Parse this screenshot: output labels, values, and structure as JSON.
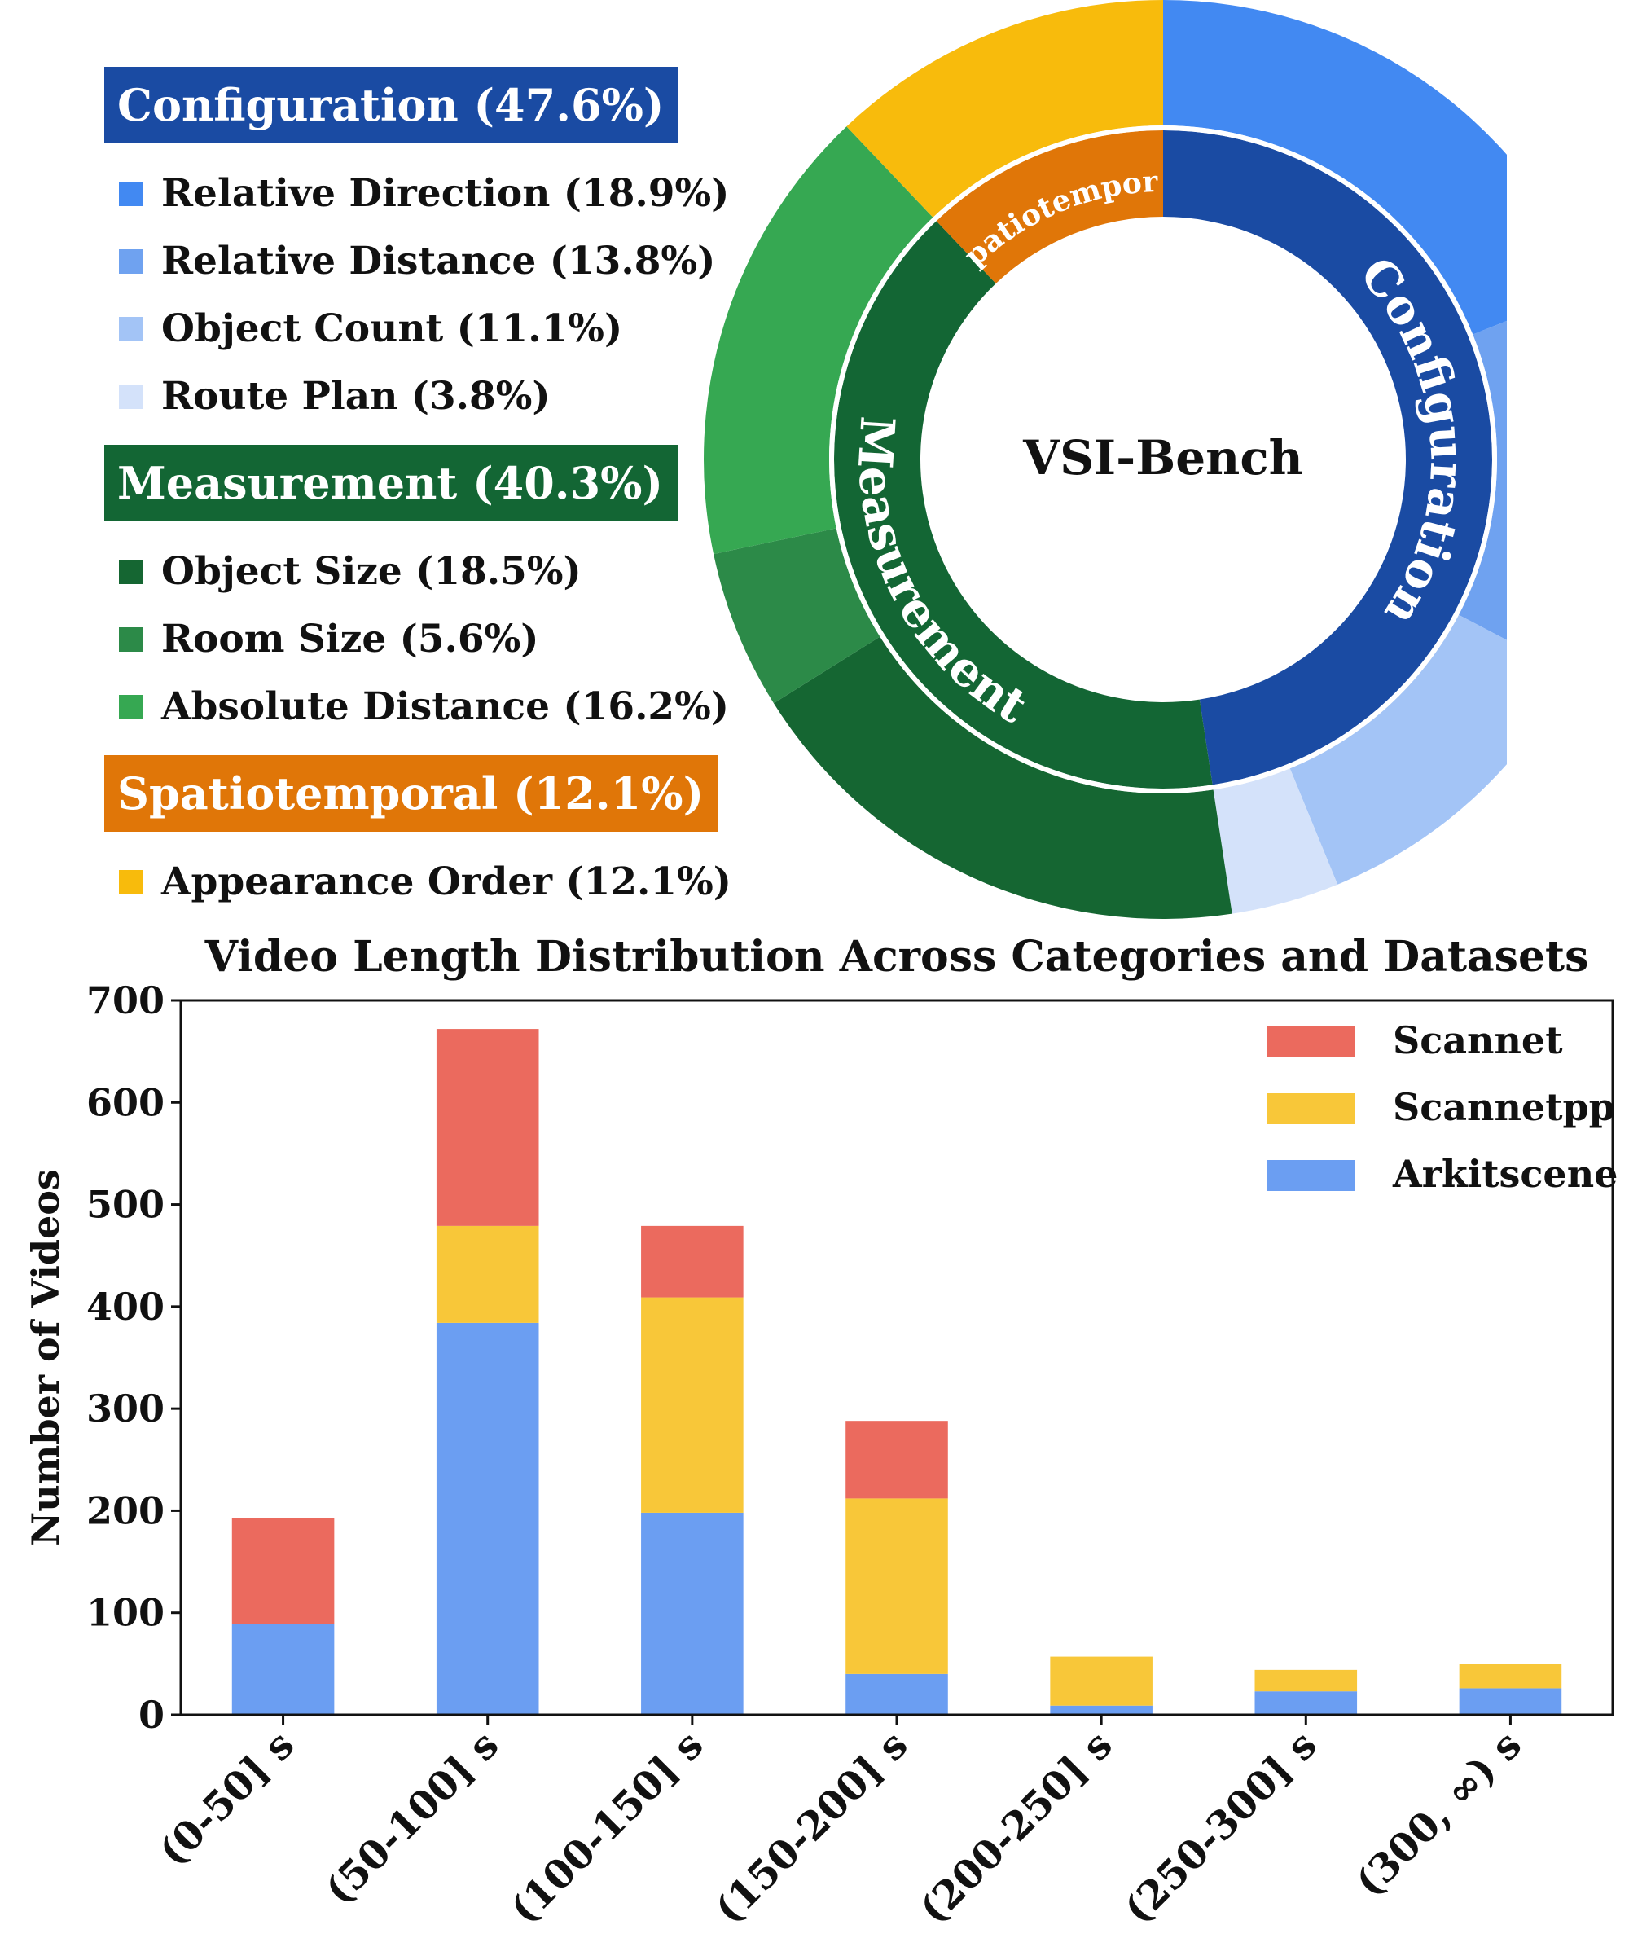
{
  "legend_panel": {
    "groups": [
      {
        "label": "Configuration (47.6%)",
        "color": "#1a4ba3",
        "items": [
          {
            "label": "Relative Direction (18.9%)",
            "color": "#4289f2"
          },
          {
            "label": "Relative Distance (13.8%)",
            "color": "#6fa2f0"
          },
          {
            "label": "Object Count (11.1%)",
            "color": "#a3c4f6"
          },
          {
            "label": "Route Plan (3.8%)",
            "color": "#d4e2fa"
          }
        ]
      },
      {
        "label": "Measurement (40.3%)",
        "color": "#136634",
        "items": [
          {
            "label": "Object Size (18.5%)",
            "color": "#156632"
          },
          {
            "label": "Room Size (5.6%)",
            "color": "#2c8a48"
          },
          {
            "label": "Absolute Distance (16.2%)",
            "color": "#36a852"
          }
        ]
      },
      {
        "label": "Spatiotemporal (12.1%)",
        "color": "#e07608",
        "items": [
          {
            "label": "Appearance Order (12.1%)",
            "color": "#f8bb0c"
          }
        ]
      }
    ]
  },
  "chart_data": [
    {
      "type": "pie",
      "title": "VSI-Bench",
      "inner_ring": [
        {
          "name": "Configuration",
          "value": 47.6,
          "color": "#1a4ba3"
        },
        {
          "name": "Measurement",
          "value": 40.3,
          "color": "#136634"
        },
        {
          "name": "Spatiotemporal",
          "value": 12.1,
          "color": "#e07608"
        }
      ],
      "outer_ring": [
        {
          "name": "Relative Direction",
          "value": 18.9,
          "color": "#4289f2"
        },
        {
          "name": "Relative Distance",
          "value": 13.8,
          "color": "#6fa2f0"
        },
        {
          "name": "Object Count",
          "value": 11.1,
          "color": "#a3c4f6"
        },
        {
          "name": "Route Plan",
          "value": 3.8,
          "color": "#d4e2fa"
        },
        {
          "name": "Object Size",
          "value": 18.5,
          "color": "#156632"
        },
        {
          "name": "Room Size",
          "value": 5.6,
          "color": "#2c8a48"
        },
        {
          "name": "Absolute Distance",
          "value": 16.2,
          "color": "#36a852"
        },
        {
          "name": "Appearance Order",
          "value": 12.1,
          "color": "#f8bb0c"
        }
      ]
    },
    {
      "type": "bar",
      "stacked": true,
      "title": "Video Length Distribution Across Categories and Datasets",
      "xlabel": "",
      "ylabel": "Number of Videos",
      "ylim": [
        0,
        700
      ],
      "yticks": [
        0,
        100,
        200,
        300,
        400,
        500,
        600,
        700
      ],
      "categories": [
        "(0-50] s",
        "(50-100] s",
        "(100-150] s",
        "(150-200] s",
        "(200-250] s",
        "(250-300] s",
        "(300, ∞) s"
      ],
      "series": [
        {
          "name": "Arkitscene",
          "color": "#6b9ef2",
          "values": [
            89,
            384,
            198,
            40,
            9,
            23,
            26
          ]
        },
        {
          "name": "Scannetpp",
          "color": "#f8c739",
          "values": [
            0,
            95,
            211,
            172,
            48,
            21,
            24
          ]
        },
        {
          "name": "Scannet",
          "color": "#eb6a5e",
          "values": [
            104,
            193,
            70,
            76,
            0,
            0,
            0
          ]
        }
      ],
      "legend_order": [
        "Scannet",
        "Scannetpp",
        "Arkitscene"
      ],
      "legend_position": "top-right"
    }
  ]
}
